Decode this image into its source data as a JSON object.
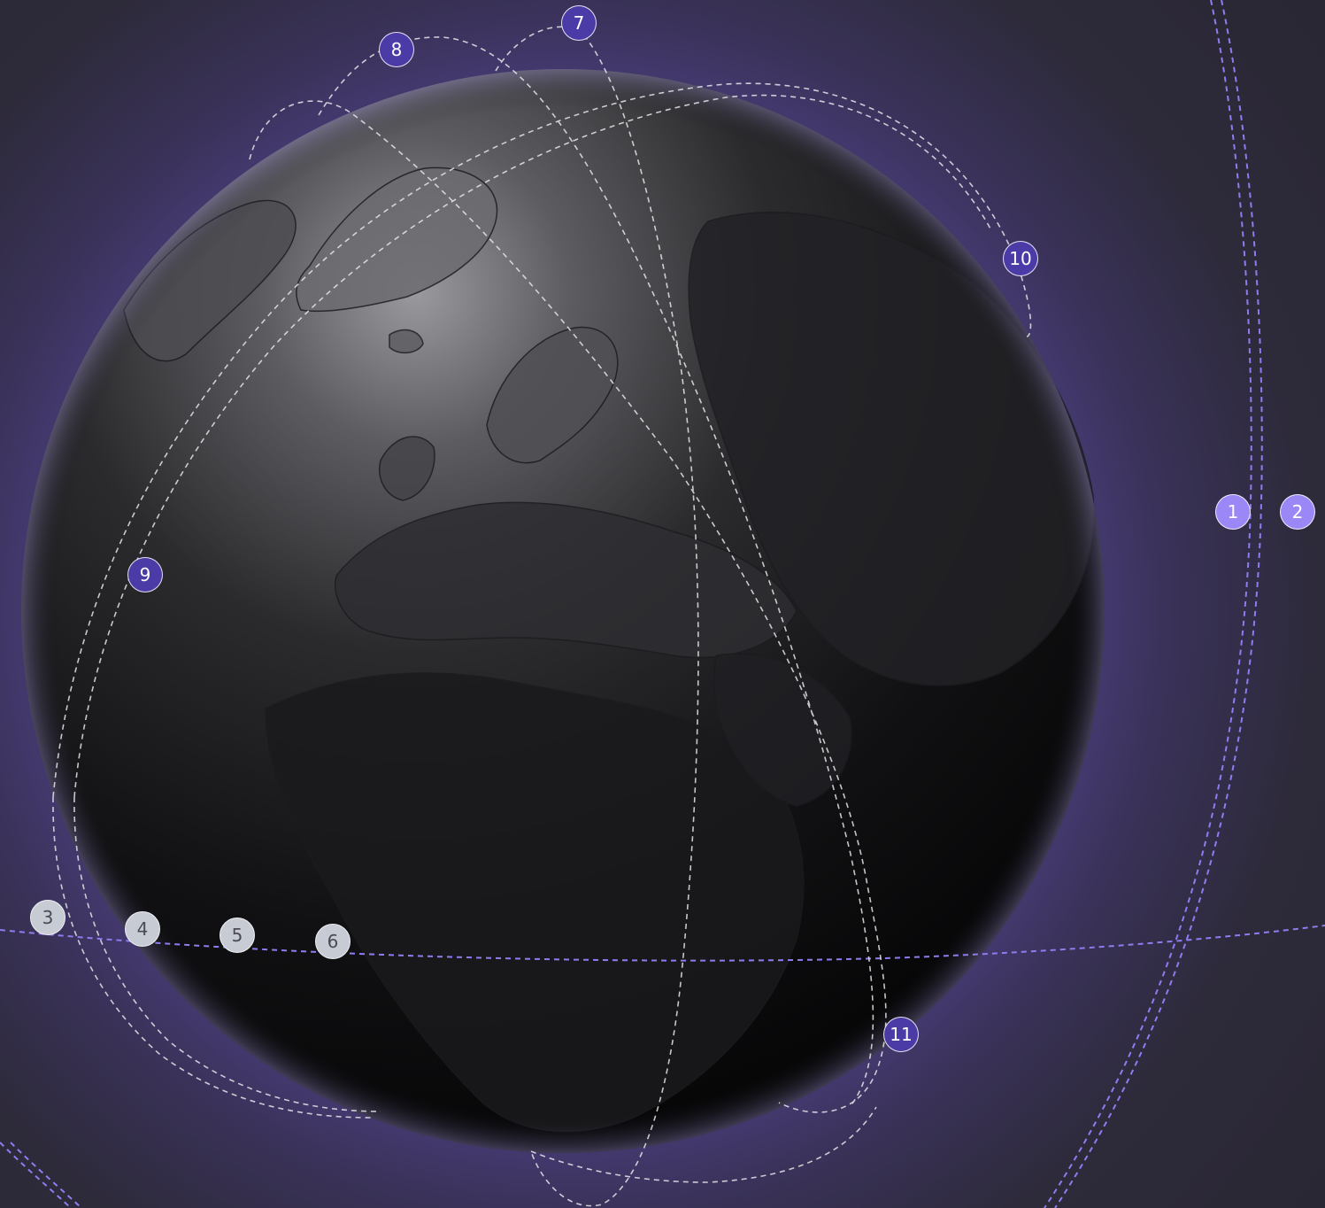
{
  "colors": {
    "background": "#2a2734",
    "glow": "#5e4d99",
    "globe_dark": "#0b0b0d",
    "globe_light": "#8a8a8e",
    "orbit_purple": "#8f7cf0",
    "orbit_white": "#e6e6ea",
    "marker_light_purple": "#9b87f5",
    "marker_dark_purple": "#4b3ba6",
    "marker_grey": "#c7cbd3"
  },
  "markers": [
    {
      "label": "1",
      "style": "light-purple"
    },
    {
      "label": "2",
      "style": "light-purple"
    },
    {
      "label": "3",
      "style": "grey"
    },
    {
      "label": "4",
      "style": "grey"
    },
    {
      "label": "5",
      "style": "grey"
    },
    {
      "label": "6",
      "style": "grey"
    },
    {
      "label": "7",
      "style": "dark-purple"
    },
    {
      "label": "8",
      "style": "dark-purple"
    },
    {
      "label": "9",
      "style": "dark-purple"
    },
    {
      "label": "10",
      "style": "dark-purple"
    },
    {
      "label": "11",
      "style": "dark-purple"
    }
  ]
}
